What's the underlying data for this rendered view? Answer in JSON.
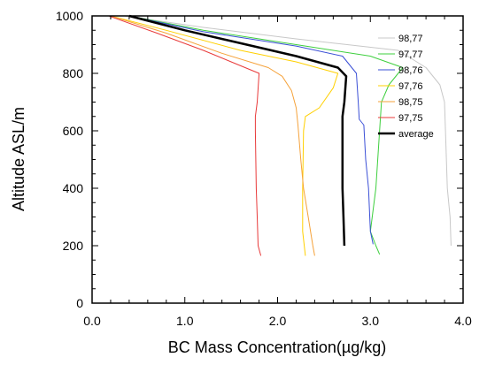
{
  "chart_data": {
    "type": "line",
    "xlabel": "BC Mass Concentration(µg/kg)",
    "ylabel": "Altitude ASL/m",
    "xlim": [
      0,
      4.0
    ],
    "ylim": [
      0,
      1000
    ],
    "x_ticks": [
      0,
      1,
      2,
      3,
      4
    ],
    "x_tick_labels": [
      "0.0",
      "1.0",
      "2.0",
      "3.0",
      "4.0"
    ],
    "y_ticks": [
      0,
      200,
      400,
      600,
      800,
      1000
    ],
    "y_tick_labels": [
      "0",
      "200",
      "400",
      "600",
      "800",
      "1000"
    ],
    "legend_position": "right",
    "grid": false,
    "series": [
      {
        "name": "98,77",
        "color": "#c8c8c8",
        "width": 1,
        "points": [
          [
            0.35,
            1000
          ],
          [
            1.2,
            960
          ],
          [
            2.2,
            920
          ],
          [
            3.3,
            880
          ],
          [
            3.6,
            820
          ],
          [
            3.75,
            760
          ],
          [
            3.8,
            700
          ],
          [
            3.81,
            600
          ],
          [
            3.83,
            400
          ],
          [
            3.86,
            300
          ],
          [
            3.87,
            200
          ]
        ]
      },
      {
        "name": "97,77",
        "color": "#3ecf3e",
        "width": 1,
        "points": [
          [
            0.4,
            1000
          ],
          [
            1.2,
            950
          ],
          [
            2.2,
            900
          ],
          [
            3.0,
            860
          ],
          [
            3.35,
            820
          ],
          [
            3.2,
            760
          ],
          [
            3.12,
            700
          ],
          [
            3.1,
            600
          ],
          [
            3.06,
            400
          ],
          [
            3.0,
            250
          ],
          [
            3.06,
            200
          ],
          [
            3.1,
            170
          ]
        ]
      },
      {
        "name": "98,76",
        "color": "#3a4fd6",
        "width": 1,
        "points": [
          [
            0.4,
            1000
          ],
          [
            1.2,
            945
          ],
          [
            2.2,
            895
          ],
          [
            2.7,
            860
          ],
          [
            2.85,
            800
          ],
          [
            2.87,
            700
          ],
          [
            2.88,
            640
          ],
          [
            2.93,
            620
          ],
          [
            2.95,
            500
          ],
          [
            2.98,
            400
          ],
          [
            3.0,
            250
          ],
          [
            3.03,
            205
          ]
        ]
      },
      {
        "name": "97,76",
        "color": "#ffd000",
        "width": 1,
        "points": [
          [
            0.2,
            1000
          ],
          [
            0.8,
            950
          ],
          [
            1.6,
            880
          ],
          [
            2.2,
            840
          ],
          [
            2.65,
            800
          ],
          [
            2.6,
            750
          ],
          [
            2.45,
            680
          ],
          [
            2.3,
            650
          ],
          [
            2.28,
            600
          ],
          [
            2.27,
            400
          ],
          [
            2.27,
            250
          ],
          [
            2.3,
            165
          ]
        ]
      },
      {
        "name": "98,75",
        "color": "#f5a23a",
        "width": 1,
        "points": [
          [
            0.2,
            1000
          ],
          [
            0.8,
            940
          ],
          [
            1.4,
            870
          ],
          [
            1.9,
            820
          ],
          [
            2.05,
            790
          ],
          [
            2.15,
            740
          ],
          [
            2.2,
            680
          ],
          [
            2.22,
            620
          ],
          [
            2.25,
            500
          ],
          [
            2.28,
            400
          ],
          [
            2.33,
            300
          ],
          [
            2.38,
            200
          ],
          [
            2.4,
            165
          ]
        ]
      },
      {
        "name": "97,75",
        "color": "#e83a3a",
        "width": 1,
        "points": [
          [
            0.18,
            1000
          ],
          [
            0.7,
            940
          ],
          [
            1.2,
            880
          ],
          [
            1.5,
            840
          ],
          [
            1.8,
            800
          ],
          [
            1.78,
            700
          ],
          [
            1.76,
            650
          ],
          [
            1.76,
            600
          ],
          [
            1.77,
            400
          ],
          [
            1.78,
            300
          ],
          [
            1.79,
            200
          ],
          [
            1.82,
            165
          ]
        ]
      },
      {
        "name": "average",
        "color": "#000000",
        "width": 2.5,
        "points": [
          [
            0.4,
            1000
          ],
          [
            1.0,
            950
          ],
          [
            1.6,
            905
          ],
          [
            2.2,
            860
          ],
          [
            2.65,
            820
          ],
          [
            2.74,
            790
          ],
          [
            2.72,
            700
          ],
          [
            2.7,
            650
          ],
          [
            2.7,
            600
          ],
          [
            2.7,
            400
          ],
          [
            2.71,
            300
          ],
          [
            2.72,
            200
          ]
        ]
      }
    ]
  }
}
